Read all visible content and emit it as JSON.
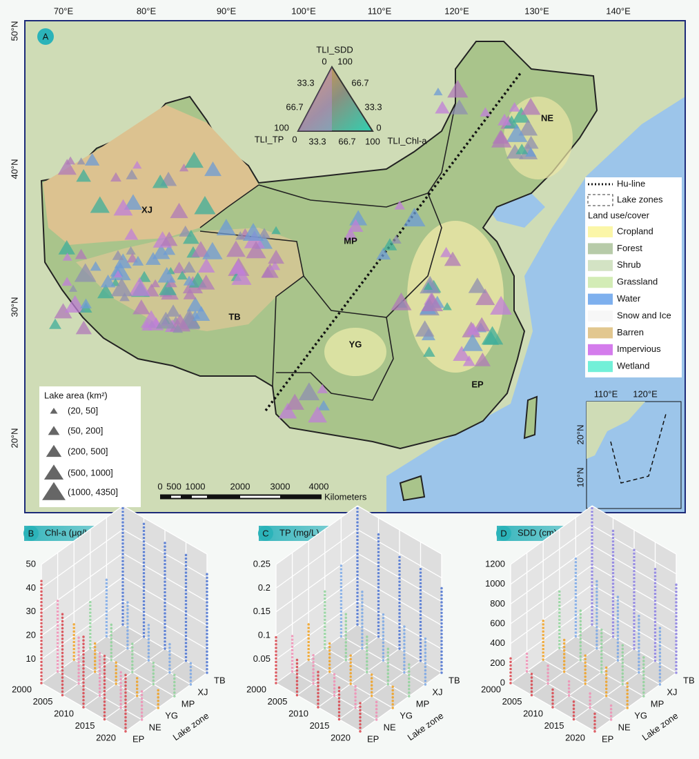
{
  "map": {
    "badge": "A",
    "lon_ticks": [
      "70°E",
      "80°E",
      "90°E",
      "100°E",
      "110°E",
      "120°E",
      "130°E",
      "140°E"
    ],
    "lat_ticks": [
      "50°N",
      "40°N",
      "30°N",
      "20°N"
    ],
    "zones": [
      "XJ",
      "MP",
      "TB",
      "YG",
      "EP",
      "NE"
    ],
    "ternary": {
      "axes": [
        "TLI_SDD",
        "TLI_TP",
        "TLI_Chl-a"
      ],
      "tick_labels": [
        "0",
        "100",
        "33.3",
        "66.7",
        "66.7",
        "33.3",
        "100",
        "0",
        "33.3",
        "66.7",
        "100",
        "0"
      ]
    },
    "legend": {
      "hu_line": "Hu-line",
      "lake_zones": "Lake zones",
      "land_title": "Land use/cover",
      "items": [
        {
          "label": "Cropland",
          "color": "#fbf6a8"
        },
        {
          "label": "Forest",
          "color": "#b7cba9"
        },
        {
          "label": "Shrub",
          "color": "#d3e3c4"
        },
        {
          "label": "Grassland",
          "color": "#d3ecb6"
        },
        {
          "label": "Water",
          "color": "#7eb0ee"
        },
        {
          "label": "Snow and Ice",
          "color": "#f7f7f7"
        },
        {
          "label": "Barren",
          "color": "#e2c78f"
        },
        {
          "label": "Impervious",
          "color": "#d47cec"
        },
        {
          "label": "Wetland",
          "color": "#72f0d8"
        }
      ]
    },
    "lake_area": {
      "title": "Lake area (km²)",
      "classes": [
        "(20, 50]",
        "(50, 200]",
        "(200, 500]",
        "(500, 1000]",
        "(1000, 4350]"
      ]
    },
    "scale_bar": {
      "labels": [
        "0",
        "500",
        "1000",
        "2000",
        "3000",
        "4000"
      ],
      "unit": "Kilometers"
    },
    "inset": {
      "lon_ticks": [
        "110°E",
        "120°E"
      ],
      "lat_ticks": [
        "20°N",
        "10°N"
      ]
    }
  },
  "chart_data": [
    {
      "type": "scatter3d",
      "badge": "B",
      "title": "Chl-a (μg/L)",
      "categories": [
        2000,
        2005,
        2010,
        2015,
        2020
      ],
      "zone_title": "Lake zone",
      "zones": [
        "EP",
        "NE",
        "YG",
        "MP",
        "XJ",
        "TB"
      ],
      "ylim": [
        0,
        50
      ],
      "yticks": [
        10,
        20,
        30,
        40,
        50
      ],
      "series": [
        {
          "color": "#d9434b",
          "values": [
            43,
            35,
            30,
            28,
            25
          ]
        },
        {
          "color": "#f08fb4",
          "values": [
            30,
            20,
            18,
            15,
            12
          ]
        },
        {
          "color": "#f0a020",
          "values": [
            15,
            12,
            10,
            8,
            8
          ]
        },
        {
          "color": "#8fd39a",
          "values": [
            20,
            15,
            12,
            10,
            10
          ]
        },
        {
          "color": "#7aa7e6",
          "values": [
            25,
            20,
            15,
            12,
            10
          ]
        },
        {
          "color": "#4a72d0",
          "values": [
            50,
            48,
            45,
            45,
            42
          ]
        }
      ]
    },
    {
      "type": "scatter3d",
      "badge": "C",
      "title": "TP (mg/L)",
      "categories": [
        2000,
        2005,
        2010,
        2015,
        2020
      ],
      "zone_title": "Lake zone",
      "zones": [
        "EP",
        "NE",
        "YG",
        "MP",
        "XJ",
        "TB"
      ],
      "ylim": [
        0,
        0.25
      ],
      "yticks": [
        0.05,
        0.1,
        0.15,
        0.2,
        0.25
      ],
      "series": [
        {
          "color": "#d9434b",
          "values": [
            0.1,
            0.08,
            0.08,
            0.07,
            0.06
          ]
        },
        {
          "color": "#f08fb4",
          "values": [
            0.08,
            0.06,
            0.05,
            0.05,
            0.04
          ]
        },
        {
          "color": "#f0a020",
          "values": [
            0.08,
            0.06,
            0.06,
            0.05,
            0.05
          ]
        },
        {
          "color": "#8fd39a",
          "values": [
            0.12,
            0.1,
            0.08,
            0.08,
            0.07
          ]
        },
        {
          "color": "#7aa7e6",
          "values": [
            0.15,
            0.12,
            0.1,
            0.1,
            0.1
          ]
        },
        {
          "color": "#4a72d0",
          "values": [
            0.25,
            0.22,
            0.2,
            0.2,
            0.18
          ]
        }
      ]
    },
    {
      "type": "scatter3d",
      "badge": "D",
      "title": "SDD (cm)",
      "categories": [
        2000,
        2005,
        2010,
        2015,
        2020
      ],
      "zone_title": "Lake zone",
      "zones": [
        "EP",
        "NE",
        "YG",
        "MP",
        "XJ",
        "TB"
      ],
      "ylim": [
        0,
        1200
      ],
      "yticks": [
        0,
        200,
        400,
        600,
        800,
        1000,
        1200
      ],
      "series": [
        {
          "color": "#d9434b",
          "values": [
            250,
            220,
            200,
            200,
            180
          ]
        },
        {
          "color": "#f08fb4",
          "values": [
            200,
            180,
            160,
            150,
            150
          ]
        },
        {
          "color": "#f0a020",
          "values": [
            400,
            350,
            300,
            300,
            250
          ]
        },
        {
          "color": "#8fd39a",
          "values": [
            600,
            500,
            450,
            400,
            400
          ]
        },
        {
          "color": "#7aa7e6",
          "values": [
            800,
            700,
            650,
            600,
            600
          ]
        },
        {
          "color": "#8a7ee0",
          "values": [
            1200,
            1100,
            1000,
            950,
            900
          ]
        }
      ]
    }
  ]
}
